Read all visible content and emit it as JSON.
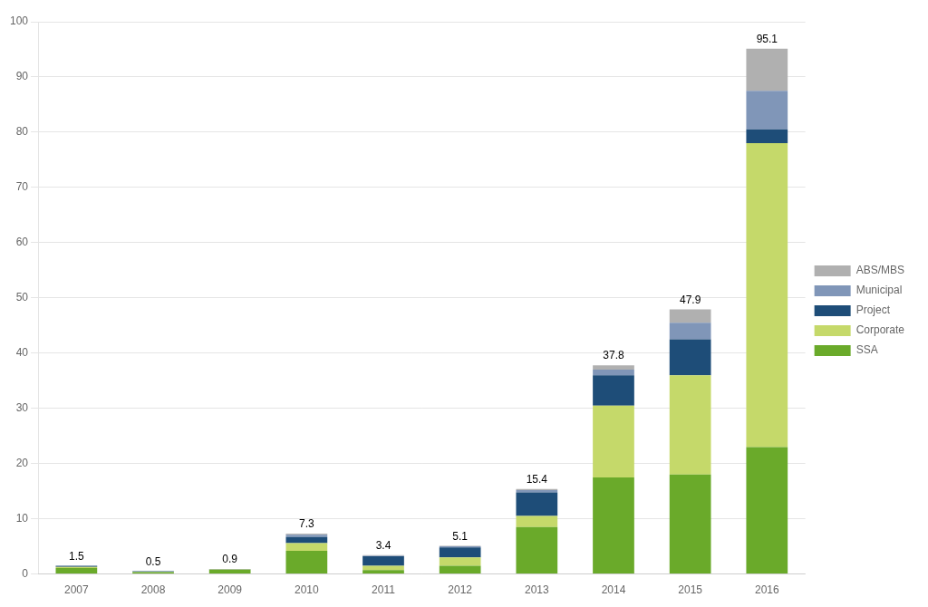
{
  "chart_data": {
    "type": "bar",
    "stacked": true,
    "categories": [
      "2007",
      "2008",
      "2009",
      "2010",
      "2011",
      "2012",
      "2013",
      "2014",
      "2015",
      "2016"
    ],
    "series": [
      {
        "name": "SSA",
        "color": "#6aaa2a",
        "values": [
          1.1,
          0.35,
          0.75,
          4.2,
          0.7,
          1.5,
          8.5,
          17.5,
          18.0,
          23.0
        ]
      },
      {
        "name": "Corporate",
        "color": "#c5d96a",
        "values": [
          0.2,
          0.05,
          0.1,
          1.4,
          0.8,
          1.5,
          2.0,
          13.0,
          18.0,
          55.0
        ]
      },
      {
        "name": "Project",
        "color": "#1e4d78",
        "values": [
          0.2,
          0.1,
          0.05,
          1.1,
          1.7,
          1.8,
          4.3,
          5.5,
          6.5,
          2.5
        ]
      },
      {
        "name": "Municipal",
        "color": "#8096b8",
        "values": [
          0.0,
          0.0,
          0.0,
          0.4,
          0.1,
          0.2,
          0.4,
          1.0,
          3.0,
          7.0
        ]
      },
      {
        "name": "ABS/MBS",
        "color": "#b0b0b0",
        "values": [
          0.0,
          0.0,
          0.0,
          0.2,
          0.1,
          0.1,
          0.2,
          0.8,
          2.4,
          7.6
        ]
      }
    ],
    "totals": [
      1.5,
      0.5,
      0.9,
      7.3,
      3.4,
      5.1,
      15.4,
      37.8,
      47.9,
      95.1
    ],
    "ylim": [
      0,
      100
    ],
    "yticks": [
      0,
      10,
      20,
      30,
      40,
      50,
      60,
      70,
      80,
      90,
      100
    ],
    "grid": true,
    "legend": "right"
  }
}
